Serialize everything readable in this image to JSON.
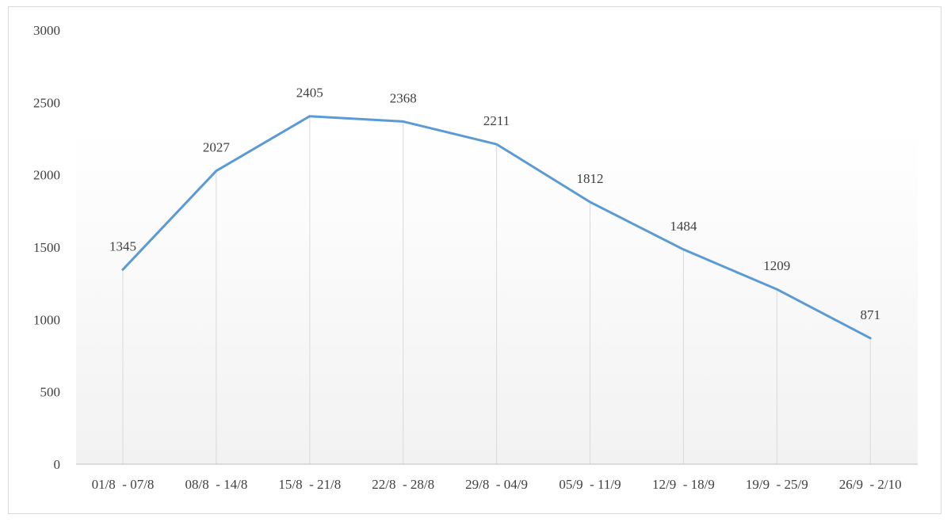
{
  "chart_data": {
    "type": "line",
    "categories": [
      "01/8  - 07/8",
      "08/8  - 14/8",
      "15/8  - 21/8",
      "22/8  - 28/8",
      "29/8  - 04/9",
      "05/9  - 11/9",
      "12/9  - 18/9",
      "19/9  - 25/9",
      "26/9  - 2/10"
    ],
    "values": [
      1345,
      2027,
      2405,
      2368,
      2211,
      1812,
      1484,
      1209,
      871
    ],
    "data_labels": [
      "1345",
      "2027",
      "2405",
      "2368",
      "2211",
      "1812",
      "1484",
      "1209",
      "871"
    ],
    "y_ticks": [
      0,
      500,
      1000,
      1500,
      2000,
      2500,
      3000
    ],
    "y_tick_labels": [
      "0",
      "500",
      "1000",
      "1500",
      "2000",
      "2500",
      "3000"
    ],
    "ylim": [
      0,
      3000
    ],
    "title": "",
    "xlabel": "",
    "ylabel": "",
    "grid": "vertical drop lines",
    "legend": "none",
    "colors": {
      "line": "#5b9bd5",
      "drop_line": "#d9d9d9",
      "axis": "#bfbfbf",
      "plot_gradient_top": "#ffffff",
      "plot_gradient_bottom": "#f2f2f2"
    }
  }
}
